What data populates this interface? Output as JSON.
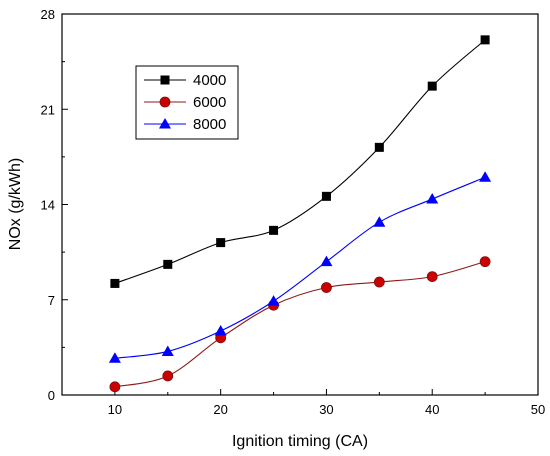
{
  "chart_data": {
    "type": "line",
    "xlabel": "Ignition timing (CA)",
    "ylabel": "NOx (g/kWh)",
    "xlim": [
      5,
      50
    ],
    "ylim": [
      0,
      28
    ],
    "xticks": [
      10,
      20,
      30,
      40,
      50
    ],
    "yticks": [
      0,
      7,
      14,
      21,
      28
    ],
    "grid": false,
    "legend_position": "top-left",
    "x": [
      10,
      15,
      20,
      25,
      30,
      35,
      40,
      45
    ],
    "series": [
      {
        "name": "4000",
        "color": "#000000",
        "marker": "square",
        "values": [
          8.2,
          9.6,
          11.2,
          12.1,
          14.6,
          18.2,
          22.7,
          26.1
        ]
      },
      {
        "name": "6000",
        "color": "#cc0000",
        "line_color": "#8b1a1a",
        "marker": "circle",
        "values": [
          0.6,
          1.4,
          4.2,
          6.6,
          7.9,
          8.3,
          8.7,
          9.8
        ]
      },
      {
        "name": "8000",
        "color": "#0000ff",
        "marker": "triangle",
        "values": [
          2.7,
          3.2,
          4.7,
          6.9,
          9.8,
          12.7,
          14.4,
          16.0
        ]
      }
    ]
  }
}
